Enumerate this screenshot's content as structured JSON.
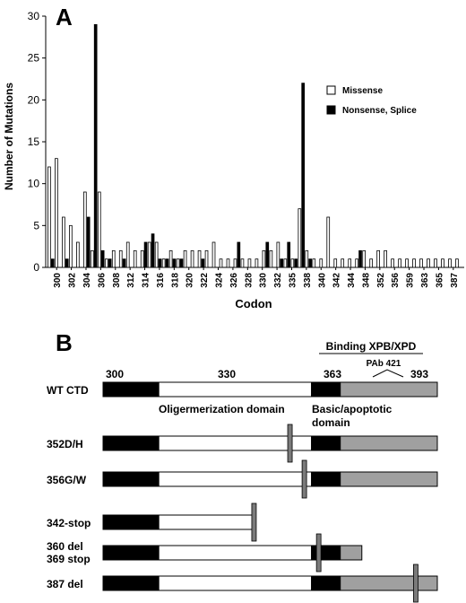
{
  "panel_a": {
    "label": "A",
    "chart_data": {
      "type": "bar",
      "ylabel": "Number of Mutations",
      "xlabel": "Codon",
      "ylim": [
        0,
        30
      ],
      "yticks": [
        "0",
        "5",
        "10",
        "15",
        "20",
        "25",
        "30"
      ],
      "grid": false,
      "legend_position": "top-right",
      "tick_labels": [
        "300",
        "302",
        "304",
        "306",
        "308",
        "312",
        "314",
        "316",
        "318",
        "320",
        "322",
        "324",
        "326",
        "328",
        "330",
        "332",
        "335",
        "338",
        "340",
        "342",
        "344",
        "348",
        "352",
        "356",
        "359",
        "363",
        "365",
        "387"
      ],
      "series": [
        {
          "name": "Missense",
          "color": "#ffffff",
          "values": [
            12,
            13,
            6,
            5,
            3,
            9,
            2,
            9,
            1,
            2,
            2,
            3,
            2,
            2,
            3,
            3,
            1,
            2,
            1,
            2,
            2,
            2,
            2,
            3,
            1,
            1,
            1,
            1,
            1,
            1,
            2,
            2,
            3,
            1,
            1,
            7,
            2,
            1,
            1,
            6,
            1,
            1,
            1,
            1,
            2,
            1,
            2,
            2,
            1,
            1,
            1,
            1,
            1,
            1,
            1,
            1,
            1,
            1
          ]
        },
        {
          "name": "Nonsense, Splice",
          "color": "#000000",
          "values": [
            1,
            0,
            1,
            0,
            0,
            6,
            29,
            2,
            1,
            0,
            1,
            0,
            0,
            3,
            4,
            1,
            1,
            1,
            1,
            0,
            0,
            1,
            0,
            0,
            0,
            0,
            3,
            0,
            0,
            0,
            3,
            0,
            1,
            3,
            1,
            22,
            1,
            0,
            0,
            0,
            0,
            0,
            0,
            2,
            0,
            0,
            0,
            0,
            0,
            0,
            0,
            0,
            0,
            0,
            0,
            0,
            0,
            0
          ]
        }
      ]
    }
  },
  "panel_b": {
    "label": "B",
    "top_header": "Binding XPB/XPD",
    "antibody_label": "PAb 421",
    "codon_labels": [
      "300",
      "330",
      "363",
      "393"
    ],
    "domain_labels": {
      "oligomerization": "Oligermerization domain",
      "basic_line1": "Basic/apoptotic",
      "basic_line2": "domain"
    },
    "constructs": [
      {
        "label": "WT CTD",
        "kind": "full",
        "marker": null
      },
      {
        "label": "352D/H",
        "kind": "full",
        "marker": "352"
      },
      {
        "label": "356G/W",
        "kind": "full",
        "marker": "356"
      },
      {
        "label": "342-stop",
        "kind": "stop342",
        "marker": "342"
      },
      {
        "label": "360 del",
        "label2": "369 stop",
        "kind": "del360",
        "marker": "360"
      },
      {
        "label": "387 del",
        "kind": "full",
        "marker": "387"
      }
    ],
    "colors": {
      "n_term": "#000000",
      "oligomer": "#ffffff",
      "basic": "#000000",
      "c_term": "#a0a0a0",
      "marker": "#7a7a7a"
    }
  }
}
